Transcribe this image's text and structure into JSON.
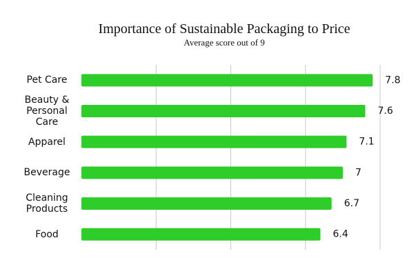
{
  "chart_data": {
    "type": "bar",
    "orientation": "horizontal",
    "title": "Importance of Sustainable Packaging to Price",
    "subtitle": "Average score out of 9",
    "categories": [
      "Pet Care",
      "Beauty & Personal Care",
      "Apparel",
      "Beverage",
      "Cleaning Products",
      "Food"
    ],
    "values": [
      7.8,
      7.6,
      7.1,
      7,
      6.7,
      6.4
    ],
    "color": "#2ecd2a",
    "xlim": [
      0,
      8
    ],
    "xticks": [
      2,
      4,
      6,
      8
    ],
    "grid": true
  }
}
